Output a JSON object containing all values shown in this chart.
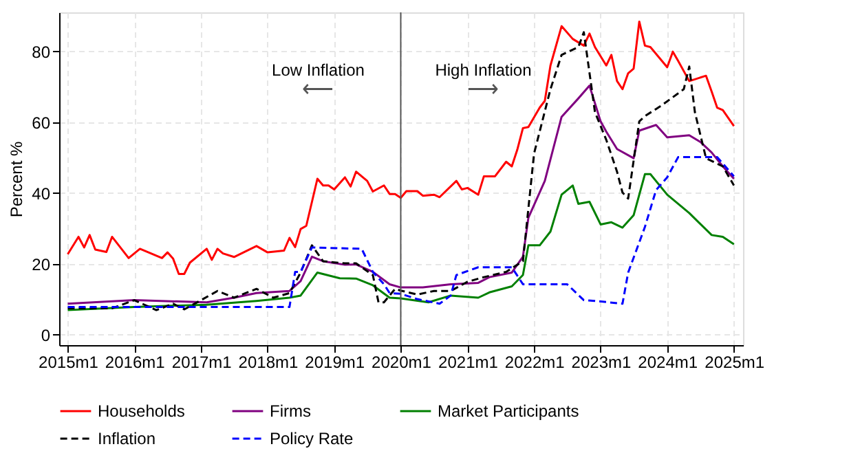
{
  "chart_data": {
    "type": "line",
    "ylabel": "Percent %",
    "xlim": [
      "2014-11-15",
      "2025-02-20"
    ],
    "ylim": [
      -3,
      91
    ],
    "xticks": [
      {
        "value": "2015-01",
        "label": "2015m1"
      },
      {
        "value": "2016-01",
        "label": "2016m1"
      },
      {
        "value": "2017-01",
        "label": "2017m1"
      },
      {
        "value": "2018-01",
        "label": "2018m1"
      },
      {
        "value": "2019-01",
        "label": "2019m1"
      },
      {
        "value": "2020-01",
        "label": "2020m1"
      },
      {
        "value": "2021-01",
        "label": "2021m1"
      },
      {
        "value": "2022-01",
        "label": "2022m1"
      },
      {
        "value": "2023-01",
        "label": "2023m1"
      },
      {
        "value": "2024-01",
        "label": "2024m1"
      },
      {
        "value": "2025-01",
        "label": "2025m1"
      }
    ],
    "yticks": [
      0,
      20,
      40,
      60,
      80
    ],
    "grid": true,
    "legend": "bottom",
    "ref_lines": [
      {
        "axis": "x",
        "value": "2020-01",
        "color": "#555555",
        "line_style": "solid"
      }
    ],
    "annotations": [
      "Low Inflation",
      "⟵",
      "High Inflation",
      "⟶"
    ],
    "series": [
      {
        "name": "Households",
        "color": "#ff0000",
        "line_style": "solid",
        "x": [
          "2015-01",
          "2015-03",
          "2015-04",
          "2015-05",
          "2015-06",
          "2015-08",
          "2015-09",
          "2015-12",
          "2016-02",
          "2016-06",
          "2016-07",
          "2016-08",
          "2016-09",
          "2016-10",
          "2016-11",
          "2017-02",
          "2017-03",
          "2017-04",
          "2017-05",
          "2017-07",
          "2017-11",
          "2018-01",
          "2018-04",
          "2018-05",
          "2018-06",
          "2018-07",
          "2018-08",
          "2018-10",
          "2018-11",
          "2018-12",
          "2019-01",
          "2019-03",
          "2019-04",
          "2019-05",
          "2019-07",
          "2019-08",
          "2019-10",
          "2019-11",
          "2019-12",
          "2020-01",
          "2020-02",
          "2020-04",
          "2020-05",
          "2020-07",
          "2020-08",
          "2020-11",
          "2020-12",
          "2021-01",
          "2021-03",
          "2021-04",
          "2021-06",
          "2021-08",
          "2021-09",
          "2021-10",
          "2021-11",
          "2021-12",
          "2022-02",
          "2022-03",
          "2022-04",
          "2022-06",
          "2022-08",
          "2022-10",
          "2022-11",
          "2022-12",
          "2023-02",
          "2023-03",
          "2023-04",
          "2023-05",
          "2023-06",
          "2023-07",
          "2023-08",
          "2023-09",
          "2023-10",
          "2024-01",
          "2024-02",
          "2024-03",
          "2024-05",
          "2024-06",
          "2024-08",
          "2024-09",
          "2024-10",
          "2024-11",
          "2025-01"
        ],
        "values": [
          22.7,
          27.6,
          24.6,
          28.1,
          24,
          23.3,
          27.6,
          21.6,
          24.2,
          21.6,
          23.2,
          21.4,
          17.1,
          17.1,
          20.3,
          24.2,
          21.1,
          24.2,
          22.9,
          21.9,
          25,
          23.2,
          23.7,
          27.3,
          24.7,
          29.8,
          30.7,
          44,
          42.1,
          42.1,
          41,
          44.4,
          41.8,
          46,
          43.4,
          40.4,
          42.1,
          39.7,
          39.7,
          38.6,
          40.5,
          40.5,
          39.2,
          39.5,
          38.8,
          43.4,
          41,
          41.4,
          39.5,
          44.7,
          44.7,
          48.8,
          47.5,
          52.2,
          58.3,
          58.6,
          64.1,
          66,
          76,
          87.1,
          83.5,
          81.6,
          85,
          81.2,
          76,
          79,
          71.6,
          69.3,
          73.8,
          75.1,
          88.4,
          81.6,
          81.2,
          75.5,
          79.9,
          77.3,
          71.6,
          72.1,
          73.1,
          68.6,
          64.1,
          63.4,
          58.9
        ]
      },
      {
        "name": "Firms",
        "color": "#800080",
        "line_style": "solid",
        "x": [
          "2015-01",
          "2016-01",
          "2017-02",
          "2017-07",
          "2017-11",
          "2018-05",
          "2018-07",
          "2018-09",
          "2018-11",
          "2019-03",
          "2019-05",
          "2019-08",
          "2019-11",
          "2020-01",
          "2020-05",
          "2020-10",
          "2021-03",
          "2021-05",
          "2021-09",
          "2021-11",
          "2021-12",
          "2022-03",
          "2022-06",
          "2022-09",
          "2022-11",
          "2023-01",
          "2023-02",
          "2023-04",
          "2023-07",
          "2023-08",
          "2023-11",
          "2024-01",
          "2024-05",
          "2024-07",
          "2024-09",
          "2024-11",
          "2025-01"
        ],
        "values": [
          8.7,
          9.7,
          9.1,
          10.4,
          11.7,
          12.3,
          15.1,
          22,
          20.7,
          19.7,
          19.8,
          17.7,
          14.2,
          13.3,
          13.3,
          14.2,
          14.6,
          16.2,
          17.5,
          22,
          33,
          43.4,
          61.5,
          66.7,
          70.3,
          60.2,
          57.3,
          52.4,
          49.8,
          57.6,
          59.2,
          55.7,
          56.3,
          54.4,
          51.4,
          47.5,
          44
        ]
      },
      {
        "name": "Market Participants",
        "color": "#008000",
        "line_style": "solid",
        "x": [
          "2015-01",
          "2016-01",
          "2017-02",
          "2017-11",
          "2018-05",
          "2018-07",
          "2018-10",
          "2019-02",
          "2019-05",
          "2019-08",
          "2019-11",
          "2020-01",
          "2020-06",
          "2020-10",
          "2021-03",
          "2021-05",
          "2021-09",
          "2021-11",
          "2021-12",
          "2022-02",
          "2022-04",
          "2022-06",
          "2022-08",
          "2022-09",
          "2022-11",
          "2023-01",
          "2023-03",
          "2023-05",
          "2023-07",
          "2023-09",
          "2023-10",
          "2024-01",
          "2024-05",
          "2024-09",
          "2024-11",
          "2025-01"
        ],
        "values": [
          6.9,
          7.8,
          8.4,
          9.5,
          10.4,
          11,
          17.5,
          15.9,
          15.8,
          13.9,
          10.4,
          10.2,
          9.1,
          11,
          10.4,
          11.9,
          13.6,
          16.8,
          25.2,
          25.2,
          29.1,
          39.5,
          42.1,
          36.9,
          37.5,
          31.1,
          31.7,
          30.2,
          33.7,
          45.3,
          45.3,
          39.5,
          34.3,
          28.1,
          27.6,
          25.5
        ]
      },
      {
        "name": "Inflation",
        "color": "#000000",
        "line_style": "dashed",
        "x": [
          "2015-01",
          "2015-09",
          "2016-01",
          "2016-05",
          "2016-08",
          "2016-10",
          "2017-01",
          "2017-04",
          "2017-07",
          "2017-11",
          "2018-02",
          "2018-05",
          "2018-07",
          "2018-09",
          "2018-11",
          "2019-03",
          "2019-05",
          "2019-08",
          "2019-09",
          "2019-10",
          "2019-12",
          "2020-01",
          "2020-04",
          "2020-07",
          "2020-10",
          "2021-01",
          "2021-04",
          "2021-08",
          "2021-11",
          "2022-01",
          "2022-04",
          "2022-06",
          "2022-09",
          "2022-10",
          "2022-12",
          "2023-02",
          "2023-04",
          "2023-05",
          "2023-06",
          "2023-08",
          "2023-09",
          "2023-12",
          "2024-04",
          "2024-05",
          "2024-06",
          "2024-08",
          "2024-11",
          "2025-01"
        ],
        "values": [
          7.4,
          7.4,
          9.7,
          6.9,
          8.7,
          7.1,
          9.7,
          12.3,
          10.4,
          12.9,
          10.4,
          11.7,
          17.5,
          25.2,
          20.7,
          20.1,
          20.1,
          16.8,
          9.1,
          9.1,
          12.9,
          12.4,
          11.3,
          12.3,
          12.3,
          14.9,
          16.2,
          17.7,
          20.7,
          51.1,
          69.3,
          79,
          81.2,
          85.4,
          62.8,
          55,
          46,
          40.1,
          38.4,
          60.2,
          61.7,
          64.7,
          69.3,
          75.7,
          62.8,
          49.8,
          47.5,
          42.1
        ]
      },
      {
        "name": "Policy Rate",
        "color": "#0000ff",
        "line_style": "dashed",
        "x": [
          "2015-01",
          "2018-05",
          "2018-06",
          "2018-07",
          "2018-09",
          "2019-06",
          "2019-08",
          "2019-10",
          "2019-11",
          "2020-01",
          "2020-04",
          "2020-08",
          "2020-10",
          "2020-11",
          "2021-03",
          "2021-09",
          "2021-11",
          "2022-07",
          "2022-10",
          "2022-12",
          "2023-05",
          "2023-06",
          "2023-09",
          "2023-11",
          "2024-01",
          "2024-03",
          "2024-10",
          "2025-01"
        ],
        "values": [
          7.8,
          7.8,
          17.7,
          17.7,
          24.6,
          24.2,
          17.7,
          14.2,
          11.7,
          11.5,
          10,
          8.7,
          11,
          16.8,
          19,
          19,
          14.2,
          14.2,
          9.7,
          9.5,
          8.7,
          17.5,
          30.4,
          40.8,
          44.4,
          50.1,
          50.1,
          44.7
        ]
      }
    ]
  }
}
